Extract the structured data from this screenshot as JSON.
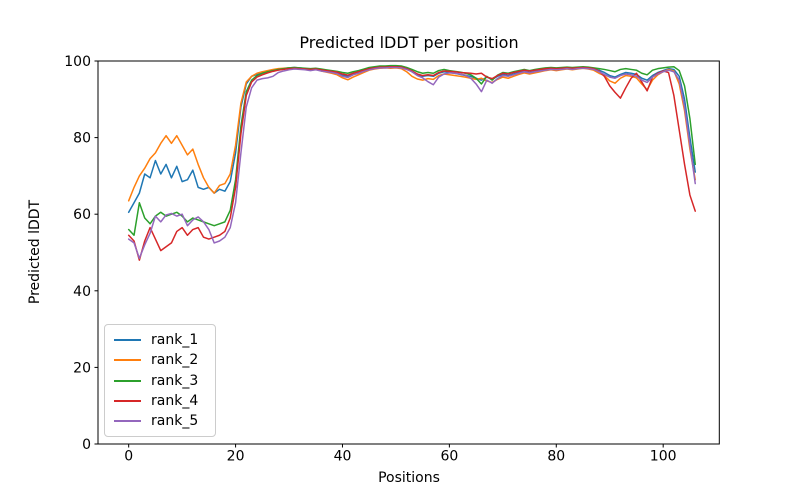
{
  "figure": {
    "title": "Predicted lDDT per position",
    "xlabel": "Positions",
    "ylabel": "Predicted lDDT"
  },
  "legend": {
    "entries": [
      {
        "label": "rank_1",
        "color": "#1f77b4"
      },
      {
        "label": "rank_2",
        "color": "#ff7f0e"
      },
      {
        "label": "rank_3",
        "color": "#2ca02c"
      },
      {
        "label": "rank_4",
        "color": "#d62728"
      },
      {
        "label": "rank_5",
        "color": "#9467bd"
      }
    ]
  },
  "chart_data": {
    "type": "line",
    "title": "Predicted lDDT per position",
    "xlabel": "Positions",
    "ylabel": "Predicted lDDT",
    "xlim": [
      -5.74,
      110.5
    ],
    "ylim": [
      0,
      100
    ],
    "x_ticks": [
      0,
      20,
      40,
      60,
      80,
      100
    ],
    "y_ticks": [
      0,
      20,
      40,
      60,
      80,
      100
    ],
    "grid": false,
    "legend_position": "lower left",
    "line_width": 1.5,
    "x": [
      0,
      1,
      2,
      3,
      4,
      5,
      6,
      7,
      8,
      9,
      10,
      11,
      12,
      13,
      14,
      15,
      16,
      17,
      18,
      19,
      20,
      21,
      22,
      23,
      24,
      25,
      26,
      27,
      28,
      29,
      30,
      31,
      32,
      33,
      34,
      35,
      36,
      37,
      38,
      39,
      40,
      41,
      42,
      43,
      44,
      45,
      46,
      47,
      48,
      49,
      50,
      51,
      52,
      53,
      54,
      55,
      56,
      57,
      58,
      59,
      60,
      61,
      62,
      63,
      64,
      65,
      66,
      67,
      68,
      69,
      70,
      71,
      72,
      73,
      74,
      75,
      76,
      77,
      78,
      79,
      80,
      81,
      82,
      83,
      84,
      85,
      86,
      87,
      88,
      89,
      90,
      91,
      92,
      93,
      94,
      95,
      96,
      97,
      98,
      99,
      100,
      101,
      102,
      103,
      104,
      105,
      106
    ],
    "series": [
      {
        "name": "rank_1",
        "color": "#1f77b4",
        "values": [
          60.5,
          63,
          65.5,
          70.5,
          69.5,
          74,
          70.5,
          73,
          69.5,
          72.5,
          68.5,
          69,
          71.5,
          67,
          66.5,
          67,
          65.5,
          66.5,
          66,
          68.5,
          76,
          88,
          94,
          96,
          96.5,
          97,
          97.3,
          97.6,
          97.8,
          98,
          98.2,
          98.3,
          98.2,
          98,
          97.8,
          98,
          97.7,
          97.4,
          97.2,
          96.8,
          96.3,
          96,
          96.5,
          97,
          97.5,
          98,
          98.3,
          98.5,
          98.5,
          98.6,
          98.7,
          98.6,
          98.2,
          97.2,
          96.3,
          96,
          96.2,
          96,
          96.8,
          97.2,
          97,
          96.8,
          96.5,
          96.2,
          96,
          95.5,
          95,
          95.8,
          95.2,
          96,
          96.5,
          96.2,
          96.6,
          97,
          97.3,
          97,
          97.3,
          97.5,
          97.8,
          98,
          97.8,
          98,
          98.2,
          98,
          98.2,
          98.4,
          98.2,
          98,
          97.6,
          97,
          96.2,
          95.8,
          96.5,
          97,
          96.8,
          96.5,
          95.5,
          95,
          96.2,
          97,
          97.5,
          98,
          97.8,
          96,
          90,
          80,
          71
        ]
      },
      {
        "name": "rank_2",
        "color": "#ff7f0e",
        "values": [
          63.5,
          67,
          70,
          72,
          74.5,
          76,
          78.5,
          80.5,
          78.5,
          80.5,
          78,
          75.5,
          77,
          73,
          69.5,
          67,
          65.5,
          67.5,
          68,
          70.5,
          78,
          89,
          94.5,
          96,
          96.8,
          97.2,
          97.5,
          97.8,
          98,
          98.1,
          98.2,
          98.1,
          98,
          97.8,
          97.6,
          97.8,
          97.4,
          97.1,
          96.8,
          96.4,
          95.6,
          95.1,
          95.8,
          96.4,
          97,
          97.6,
          97.9,
          98.1,
          98.2,
          98.1,
          98.2,
          98,
          97.2,
          96,
          95.3,
          95,
          95.4,
          95.2,
          96.2,
          96.6,
          96.4,
          96.2,
          96,
          95.8,
          95.5,
          95.2,
          95.5,
          94.8,
          94.4,
          95.2,
          95.8,
          95.5,
          96,
          96.5,
          96.9,
          96.6,
          96.9,
          97.2,
          97.5,
          97.7,
          97.5,
          97.7,
          97.9,
          97.7,
          97.9,
          98.1,
          97.9,
          97.6,
          96.8,
          96.2,
          94.8,
          94.2,
          95.5,
          96.2,
          96,
          95.6,
          94,
          92.5,
          95,
          96.4,
          97.2,
          97.8,
          97.4,
          94,
          87,
          77,
          69
        ]
      },
      {
        "name": "rank_3",
        "color": "#2ca02c",
        "values": [
          56,
          54.5,
          63,
          59,
          57.5,
          59.5,
          60.5,
          59.5,
          60,
          60.5,
          59.5,
          58,
          59,
          58.5,
          58,
          57.5,
          57,
          57.5,
          58,
          61,
          69,
          83,
          92,
          95,
          96.2,
          96.8,
          97.2,
          97.5,
          97.8,
          98,
          98.2,
          98.3,
          98.2,
          98.1,
          98,
          98.1,
          97.9,
          97.7,
          97.5,
          97.3,
          97,
          96.8,
          97.2,
          97.5,
          97.9,
          98.3,
          98.5,
          98.7,
          98.7,
          98.8,
          98.8,
          98.7,
          98.3,
          97.8,
          97.2,
          96.8,
          97,
          96.8,
          97.5,
          97.8,
          97.5,
          97.3,
          97.1,
          96.8,
          96.4,
          95.5,
          94,
          96,
          95,
          96.3,
          97,
          96.8,
          97.2,
          97.5,
          97.8,
          97.5,
          97.8,
          98,
          98.2,
          98.3,
          98.2,
          98.3,
          98.4,
          98.3,
          98.4,
          98.5,
          98.4,
          98.2,
          98,
          97.8,
          97.5,
          97.2,
          97.8,
          98,
          97.8,
          97.6,
          96.8,
          96.4,
          97.6,
          98,
          98.2,
          98.4,
          98.5,
          97.5,
          93.5,
          85,
          73
        ]
      },
      {
        "name": "rank_4",
        "color": "#d62728",
        "values": [
          54.5,
          53,
          48,
          53,
          56.5,
          53.5,
          50.5,
          51.5,
          52.5,
          55.5,
          56.5,
          54.5,
          56,
          56.5,
          54,
          53.5,
          54,
          54.5,
          55.5,
          59,
          67,
          81,
          91,
          94.5,
          95.8,
          96.4,
          96.9,
          97.3,
          97.6,
          97.8,
          98,
          98.1,
          98,
          97.9,
          97.8,
          97.9,
          97.7,
          97.5,
          97.3,
          97.1,
          96.6,
          96.3,
          96.8,
          97.2,
          97.6,
          98,
          98.2,
          98.4,
          98.4,
          98.5,
          98.5,
          98.4,
          98,
          97.4,
          96.6,
          96.2,
          96.4,
          96.2,
          97,
          97.4,
          97.3,
          97.2,
          97,
          96.9,
          96.8,
          96.6,
          96.8,
          95.8,
          95.4,
          96.2,
          96.8,
          96.6,
          97,
          97.3,
          97.6,
          97.4,
          97.6,
          97.8,
          98,
          98.1,
          98,
          98.1,
          98.2,
          98.1,
          98.2,
          98.3,
          98.2,
          98,
          97.4,
          96,
          93.5,
          91.8,
          90.3,
          93,
          95.5,
          96.8,
          94.5,
          92.2,
          95.8,
          96.8,
          97.4,
          97,
          91,
          82,
          73,
          65,
          60.8
        ]
      },
      {
        "name": "rank_5",
        "color": "#9467bd",
        "values": [
          53.5,
          52.5,
          48.5,
          52,
          55,
          59.5,
          58,
          59.8,
          60.2,
          59.5,
          60,
          57,
          58.5,
          59.3,
          58,
          56,
          52.5,
          53,
          54,
          56.5,
          63,
          76,
          88,
          93,
          95,
          95.4,
          95.6,
          96,
          97,
          97.4,
          97.7,
          97.9,
          97.8,
          97.7,
          97.5,
          97.7,
          97.4,
          97.2,
          97,
          96.7,
          96,
          95.7,
          96.4,
          96.8,
          97.3,
          97.7,
          98,
          98.2,
          98.2,
          98.3,
          98.3,
          98.2,
          97.8,
          97.2,
          96.2,
          95.6,
          94.6,
          93.8,
          95.8,
          96.6,
          96.9,
          96.8,
          96.6,
          96.3,
          95.5,
          94,
          92,
          95,
          94.2,
          95.4,
          96.2,
          96,
          96.4,
          96.8,
          97.2,
          96.9,
          97.2,
          97.4,
          97.6,
          97.8,
          97.7,
          97.8,
          98,
          97.8,
          98,
          98.1,
          98,
          97.8,
          97.2,
          96.5,
          95.8,
          95.5,
          96.2,
          96.6,
          96.4,
          96,
          95,
          94.4,
          95.8,
          96.6,
          97.2,
          97.6,
          97.2,
          95,
          88,
          78,
          68
        ]
      }
    ]
  }
}
